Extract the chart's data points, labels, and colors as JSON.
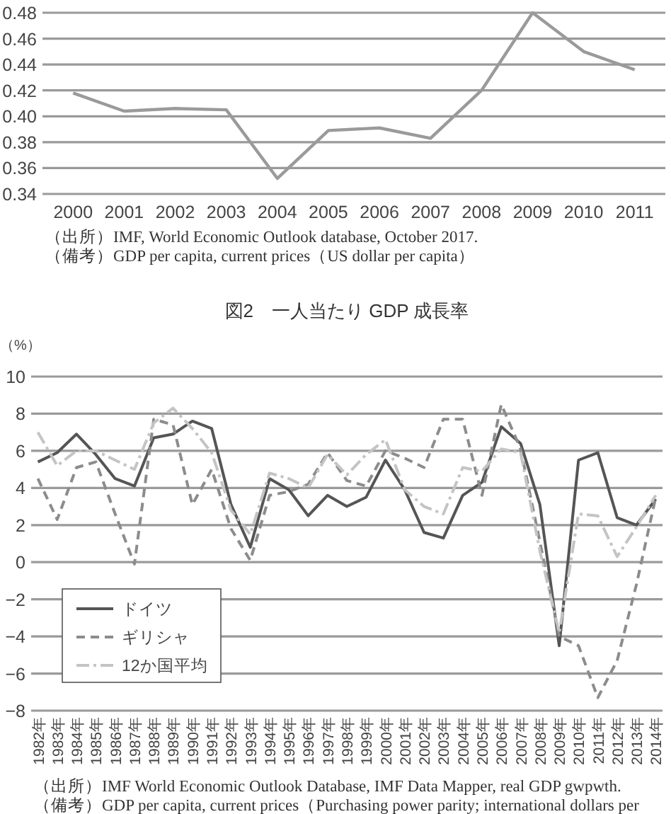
{
  "chart_data": [
    {
      "type": "line",
      "categories": [
        "2000",
        "2001",
        "2002",
        "2003",
        "2004",
        "2005",
        "2006",
        "2007",
        "2008",
        "2009",
        "2010",
        "2011"
      ],
      "values": [
        0.418,
        0.404,
        0.406,
        0.405,
        0.352,
        0.389,
        0.391,
        0.383,
        0.42,
        0.48,
        0.45,
        0.436
      ],
      "color": "#9a9a9a",
      "ylim": [
        0.34,
        0.48
      ],
      "yticks": [
        0.34,
        0.36,
        0.38,
        {
          "value": 0.4,
          "label": "0.40"
        },
        0.42,
        0.44,
        0.46,
        0.48
      ],
      "grid": "y",
      "marker": "none",
      "annotations": [
        "（出所）IMF, World Economic Outlook database, October 2017.",
        "（備考）GDP per capita, current prices（US dollar per capita）"
      ]
    },
    {
      "type": "line",
      "title": "図2　一人当たり GDP 成長率",
      "ylabel": "（%）",
      "categories": [
        "1982年",
        "1983年",
        "1984年",
        "1985年",
        "1986年",
        "1987年",
        "1988年",
        "1989年",
        "1990年",
        "1991年",
        "1992年",
        "1993年",
        "1994年",
        "1995年",
        "1996年",
        "1997年",
        "1998年",
        "1999年",
        "2000年",
        "2001年",
        "2002年",
        "2003年",
        "2004年",
        "2005年",
        "2006年",
        "2007年",
        "2008年",
        "2009年",
        "2010年",
        "2011年",
        "2012年",
        "2013年",
        "2014年"
      ],
      "series": [
        {
          "name": "ドイツ",
          "color": "#555555",
          "line_style": "solid",
          "values": [
            5.4,
            5.9,
            6.9,
            5.8,
            4.5,
            4.1,
            6.7,
            6.9,
            7.6,
            7.2,
            3.1,
            0.8,
            4.5,
            3.9,
            2.5,
            3.6,
            3.0,
            3.5,
            5.5,
            3.9,
            1.6,
            1.3,
            3.6,
            4.3,
            7.3,
            6.4,
            3.1,
            -4.5,
            5.5,
            5.9,
            2.4,
            2.0,
            3.4
          ]
        },
        {
          "name": "ギリシャ",
          "color": "#8c8c8c",
          "line_style": "dashed",
          "values": [
            4.5,
            2.3,
            5.1,
            5.4,
            2.6,
            -0.1,
            7.7,
            7.4,
            3.1,
            5.0,
            1.8,
            0.1,
            3.6,
            3.8,
            4.2,
            5.9,
            4.4,
            4.1,
            6.0,
            5.6,
            5.1,
            7.7,
            7.7,
            3.6,
            8.5,
            6.1,
            1.1,
            -4.0,
            -4.5,
            -7.3,
            -5.3,
            -1.2,
            3.5
          ]
        },
        {
          "name": "12か国平均",
          "color": "#c4c4c4",
          "line_style": "dashdot",
          "values": [
            7.0,
            5.2,
            6.0,
            6.0,
            5.5,
            5.0,
            7.5,
            8.3,
            7.2,
            5.9,
            2.8,
            1.5,
            4.8,
            4.5,
            4.0,
            5.8,
            4.7,
            5.8,
            6.6,
            3.9,
            3.0,
            2.6,
            5.1,
            4.9,
            6.1,
            5.9,
            0.6,
            -3.8,
            2.6,
            2.5,
            0.3,
            1.9,
            3.6
          ]
        }
      ],
      "ylim": [
        -8,
        10
      ],
      "yticks": [
        -8,
        -6,
        -4,
        -2,
        0,
        2,
        4,
        6,
        8,
        10
      ],
      "grid": "y",
      "legend": "bottom left",
      "marker": "none",
      "annotations": [
        "（出所）IMF World Economic Outlook Database, IMF Data Mapper, real GDP gwpwth.",
        "（備考）GDP per capita, current prices（Purchasing power parity; international dollars per"
      ]
    }
  ]
}
